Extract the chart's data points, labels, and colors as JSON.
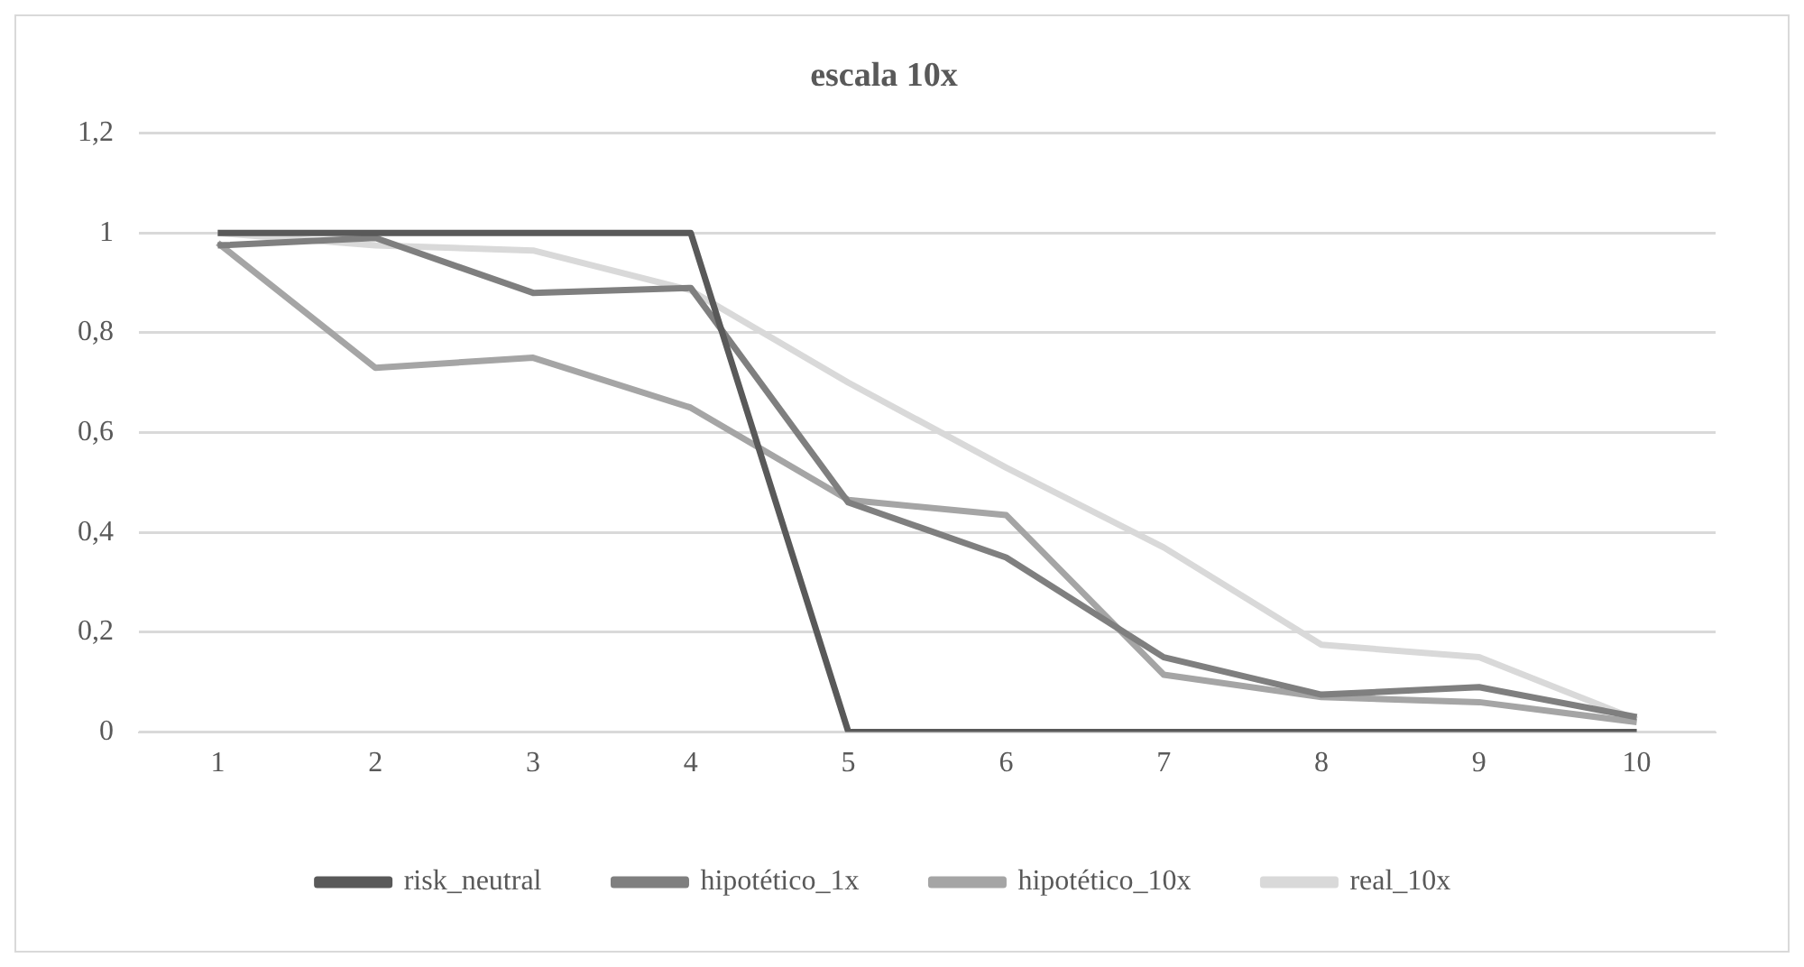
{
  "chart_data": {
    "type": "line",
    "title": "escala 10x",
    "categories": [
      "1",
      "2",
      "3",
      "4",
      "5",
      "6",
      "7",
      "8",
      "9",
      "10"
    ],
    "series": [
      {
        "name": "risk_neutral",
        "color": "#595959",
        "values": [
          1,
          1,
          1,
          1,
          0,
          0,
          0,
          0,
          0,
          0
        ]
      },
      {
        "name": "hipotético_1x",
        "color": "#7f7f7f",
        "values": [
          0.975,
          0.99,
          0.88,
          0.89,
          0.46,
          0.35,
          0.15,
          0.075,
          0.09,
          0.03
        ]
      },
      {
        "name": "hipotético_10x",
        "color": "#a5a5a5",
        "values": [
          0.98,
          0.73,
          0.75,
          0.65,
          0.465,
          0.435,
          0.115,
          0.07,
          0.06,
          0.02
        ]
      },
      {
        "name": "real_10x",
        "color": "#d9d9d9",
        "values": [
          1,
          0.975,
          0.965,
          0.885,
          0.7,
          0.53,
          0.37,
          0.175,
          0.15,
          0.025
        ]
      }
    ],
    "ylim": [
      0,
      1.2
    ],
    "yticks": [
      0,
      {
        "value": 0.2,
        "label": "0,2"
      },
      {
        "value": 0.4,
        "label": "0,4"
      },
      {
        "value": 0.6,
        "label": "0,6"
      },
      {
        "value": 0.8,
        "label": "0,8"
      },
      1,
      {
        "value": 1.2,
        "label": "1,2"
      }
    ],
    "grid": "y",
    "legend": "bottom",
    "marker": "none",
    "line_style": "solid"
  }
}
